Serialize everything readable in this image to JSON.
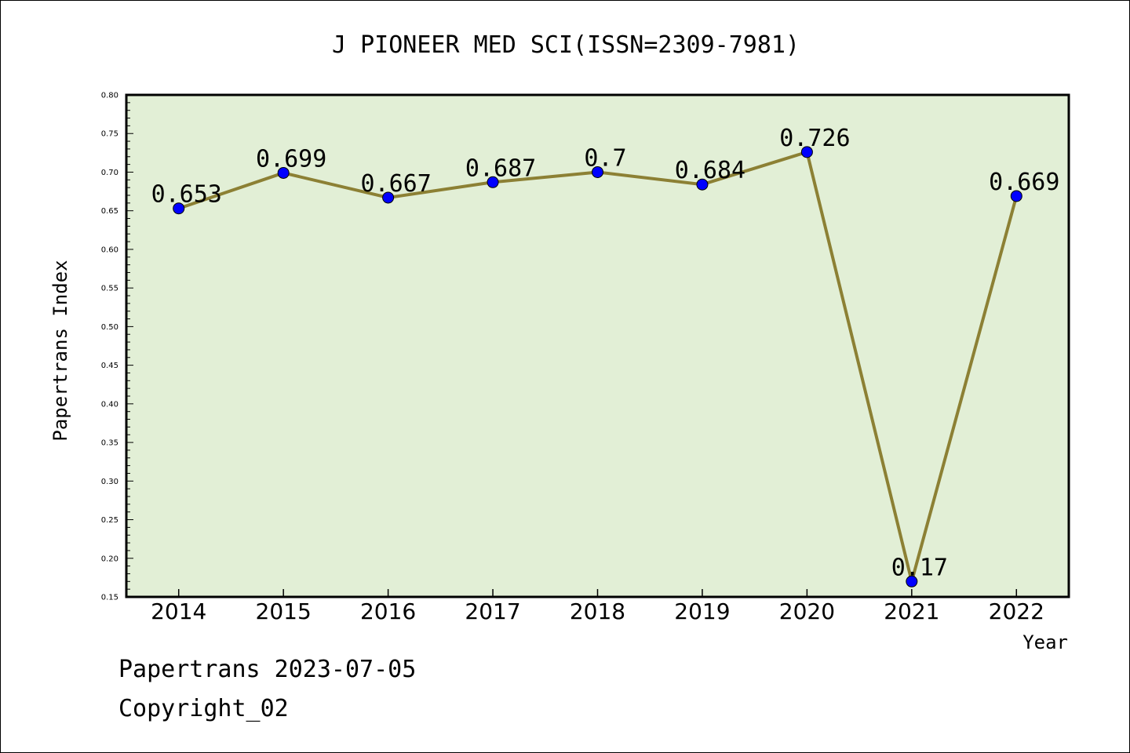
{
  "chart_data": {
    "type": "line",
    "title": "J PIONEER MED SCI(ISSN=2309-7981)",
    "xlabel": "Year",
    "ylabel": "Papertrans Index",
    "categories": [
      "2014",
      "2015",
      "2016",
      "2017",
      "2018",
      "2019",
      "2020",
      "2021",
      "2022"
    ],
    "series": [
      {
        "values": [
          0.653,
          0.699,
          0.667,
          0.687,
          0.7,
          0.684,
          0.726,
          0.17,
          0.669
        ]
      }
    ],
    "data_labels": [
      "0.653",
      "0.699",
      "0.667",
      "0.687",
      "0.7",
      "0.684",
      "0.726",
      "0.17",
      "0.669"
    ],
    "ylim": [
      0.15,
      0.8
    ],
    "yticks": [
      "0.15",
      "0.20",
      "0.25",
      "0.30",
      "0.35",
      "0.40",
      "0.45",
      "0.50",
      "0.55",
      "0.60",
      "0.65",
      "0.70",
      "0.75",
      "0.80"
    ],
    "grid": false,
    "legend": "none",
    "colors": {
      "plot_background": "#e2efd6",
      "line": "#8c8034",
      "marker": "#0000ff"
    }
  },
  "footer": {
    "line1": "Papertrans 2023-07-05",
    "line2": "Copyright_02"
  }
}
